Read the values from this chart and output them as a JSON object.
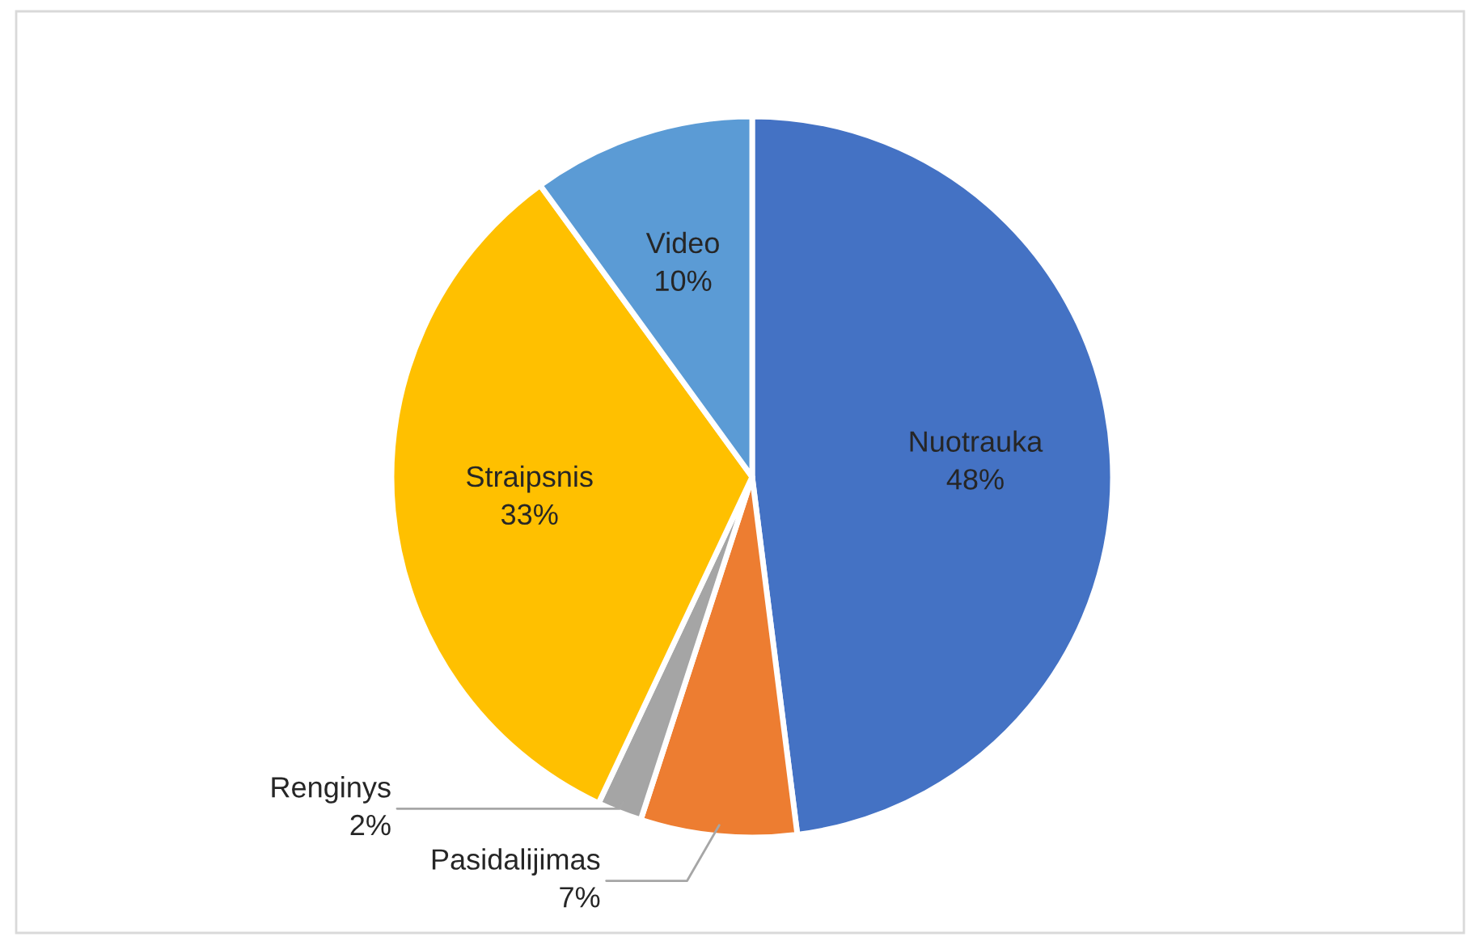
{
  "chart_data": {
    "type": "pie",
    "categories": [
      "Nuotrauka",
      "Pasidalijimas",
      "Renginys",
      "Straipsnis",
      "Video"
    ],
    "values": [
      48,
      7,
      2,
      33,
      10
    ],
    "colors": [
      "#4472c4",
      "#ed7d31",
      "#a5a5a5",
      "#ffc000",
      "#5b9bd5"
    ],
    "value_labels": [
      "48%",
      "7%",
      "2%",
      "33%",
      "10%"
    ],
    "legend": false
  }
}
